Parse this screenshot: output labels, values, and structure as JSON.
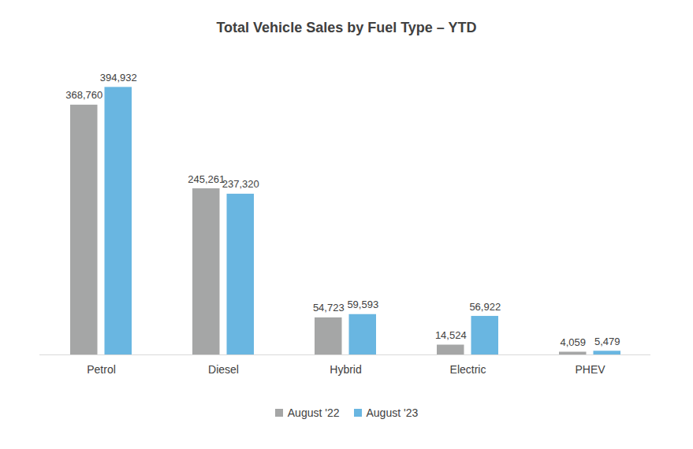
{
  "chart_data": {
    "type": "bar",
    "title": "Total Vehicle Sales by Fuel Type – YTD",
    "categories": [
      "Petrol",
      "Diesel",
      "Hybrid",
      "Electric",
      "PHEV"
    ],
    "series": [
      {
        "name": "August '22",
        "color": "#a5a6a6",
        "values": [
          368760,
          245261,
          54723,
          14524,
          4059
        ],
        "value_labels": [
          "368,760",
          "245,261",
          "54,723",
          "14,524",
          "4,059"
        ]
      },
      {
        "name": "August '23",
        "color": "#69b6e1",
        "values": [
          394932,
          237320,
          59593,
          56922,
          5479
        ],
        "value_labels": [
          "394,932",
          "237,320",
          "59,593",
          "56,922",
          "5,479"
        ]
      }
    ],
    "ylim": [
      0,
      400000
    ],
    "data_labels": true,
    "tick_labels": "x",
    "legend": "bottom"
  }
}
